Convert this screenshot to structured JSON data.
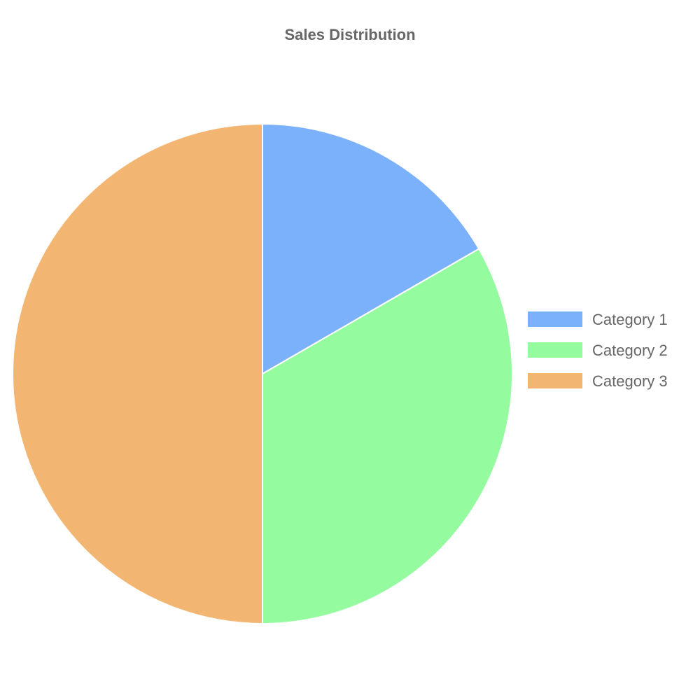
{
  "chart_data": {
    "type": "pie",
    "title": "Sales Distribution",
    "categories": [
      "Category 1",
      "Category 2",
      "Category 3"
    ],
    "values": [
      1,
      2,
      3
    ],
    "colors": [
      "#7BB1FA",
      "#94FB9F",
      "#F3B672"
    ],
    "slice_border_color": "#ffffff",
    "legend_position": "right"
  }
}
